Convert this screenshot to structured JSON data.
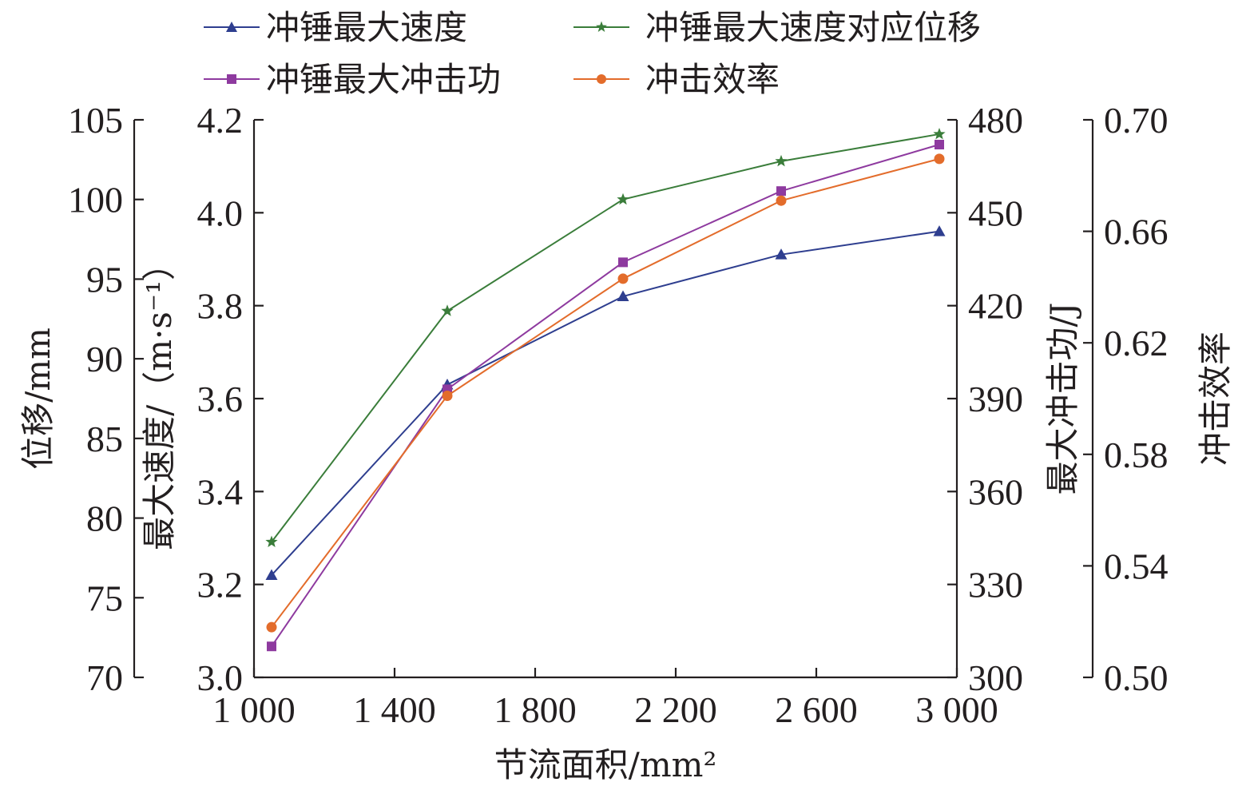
{
  "chart_data": {
    "type": "line",
    "title": "",
    "xlabel": "节流面积/mm²",
    "x": [
      1050,
      1550,
      2050,
      2500,
      2950
    ],
    "x_ticks": [
      1000,
      1400,
      1800,
      2200,
      2600,
      3000
    ],
    "x_tick_labels": [
      "1 000",
      "1 400",
      "1 800",
      "2 200",
      "2 600",
      "3 000"
    ],
    "xlim": [
      1000,
      3000
    ],
    "axes": {
      "displacement": {
        "label": "位移/mm",
        "lim": [
          70,
          105
        ],
        "ticks": [
          "70",
          "75",
          "80",
          "85",
          "90",
          "95",
          "100",
          "105"
        ]
      },
      "velocity": {
        "label": "最大速度/（m·s⁻¹）",
        "lim": [
          3.0,
          4.2
        ],
        "ticks": [
          "3.0",
          "3.2",
          "3.4",
          "3.6",
          "3.8",
          "4.0",
          "4.2"
        ]
      },
      "energy": {
        "label": "最大冲击功/J",
        "lim": [
          300,
          480
        ],
        "ticks": [
          "300",
          "330",
          "360",
          "390",
          "420",
          "450",
          "480"
        ]
      },
      "efficiency": {
        "label": "冲击效率",
        "lim": [
          0.5,
          0.7
        ],
        "ticks": [
          "0.50",
          "0.54",
          "0.58",
          "0.62",
          "0.66",
          "0.70"
        ]
      }
    },
    "series": [
      {
        "name": "冲锤最大速度",
        "axis": "velocity",
        "color": "#2e3e8f",
        "marker": "triangle",
        "values": [
          3.22,
          3.63,
          3.82,
          3.91,
          3.96
        ]
      },
      {
        "name": "冲锤最大速度对应位移",
        "axis": "displacement",
        "color": "#3a7d3a",
        "marker": "star",
        "values": [
          78.5,
          93.0,
          100.0,
          102.4,
          104.1
        ]
      },
      {
        "name": "冲锤最大冲击功",
        "axis": "energy",
        "color": "#8e3a9f",
        "marker": "square",
        "values": [
          310,
          393,
          434,
          457,
          472
        ]
      },
      {
        "name": "冲击效率",
        "axis": "efficiency",
        "color": "#e36c2b",
        "marker": "circle",
        "values": [
          0.518,
          0.601,
          0.643,
          0.671,
          0.686
        ]
      }
    ],
    "legend": [
      {
        "label": "冲锤最大速度"
      },
      {
        "label": "冲锤最大速度对应位移"
      },
      {
        "label": "冲锤最大冲击功"
      },
      {
        "label": "冲击效率"
      }
    ]
  }
}
